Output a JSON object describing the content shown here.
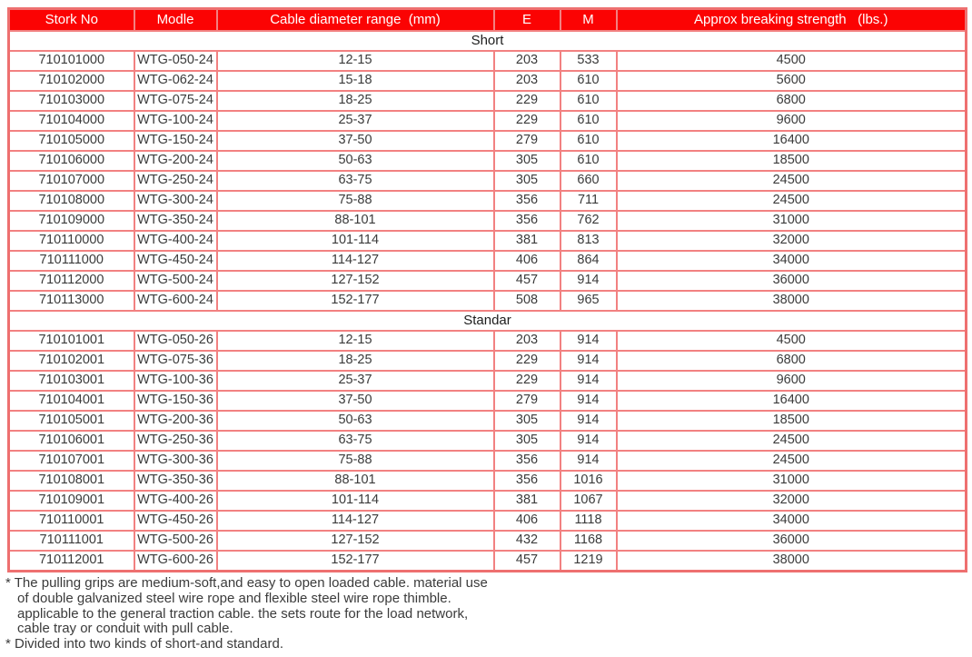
{
  "colors": {
    "header_bg": "#fb0303",
    "border": "#f28181",
    "border_outer": "#ee7070",
    "text": "#3b3b3b"
  },
  "table": {
    "columns": [
      "Stork No",
      "Modle",
      "Cable diameter range  (mm)",
      "E",
      "M",
      "Approx breaking strength   (lbs.)"
    ],
    "sections": [
      {
        "title": "Short",
        "rows": [
          [
            "710101000",
            "WTG-050-24",
            "12-15",
            "203",
            "533",
            "4500"
          ],
          [
            "710102000",
            "WTG-062-24",
            "15-18",
            "203",
            "610",
            "5600"
          ],
          [
            "710103000",
            "WTG-075-24",
            "18-25",
            "229",
            "610",
            "6800"
          ],
          [
            "710104000",
            "WTG-100-24",
            "25-37",
            "229",
            "610",
            "9600"
          ],
          [
            "710105000",
            "WTG-150-24",
            "37-50",
            "279",
            "610",
            "16400"
          ],
          [
            "710106000",
            "WTG-200-24",
            "50-63",
            "305",
            "610",
            "18500"
          ],
          [
            "710107000",
            "WTG-250-24",
            "63-75",
            "305",
            "660",
            "24500"
          ],
          [
            "710108000",
            "WTG-300-24",
            "75-88",
            "356",
            "711",
            "24500"
          ],
          [
            "710109000",
            "WTG-350-24",
            "88-101",
            "356",
            "762",
            "31000"
          ],
          [
            "710110000",
            "WTG-400-24",
            "101-114",
            "381",
            "813",
            "32000"
          ],
          [
            "710111000",
            "WTG-450-24",
            "114-127",
            "406",
            "864",
            "34000"
          ],
          [
            "710112000",
            "WTG-500-24",
            "127-152",
            "457",
            "914",
            "36000"
          ],
          [
            "710113000",
            "WTG-600-24",
            "152-177",
            "508",
            "965",
            "38000"
          ]
        ]
      },
      {
        "title": "Standar",
        "rows": [
          [
            "710101001",
            "WTG-050-26",
            "12-15",
            "203",
            "914",
            "4500"
          ],
          [
            "710102001",
            "WTG-075-36",
            "18-25",
            "229",
            "914",
            "6800"
          ],
          [
            "710103001",
            "WTG-100-36",
            "25-37",
            "229",
            "914",
            "9600"
          ],
          [
            "710104001",
            "WTG-150-36",
            "37-50",
            "279",
            "914",
            "16400"
          ],
          [
            "710105001",
            "WTG-200-36",
            "50-63",
            "305",
            "914",
            "18500"
          ],
          [
            "710106001",
            "WTG-250-36",
            "63-75",
            "305",
            "914",
            "24500"
          ],
          [
            "710107001",
            "WTG-300-36",
            "75-88",
            "356",
            "914",
            "24500"
          ],
          [
            "710108001",
            "WTG-350-36",
            "88-101",
            "356",
            "1016",
            "31000"
          ],
          [
            "710109001",
            "WTG-400-26",
            "101-114",
            "381",
            "1067",
            "32000"
          ],
          [
            "710110001",
            "WTG-450-26",
            "114-127",
            "406",
            "1118",
            "34000"
          ],
          [
            "710111001",
            "WTG-500-26",
            "127-152",
            "432",
            "1168",
            "36000"
          ],
          [
            "710112001",
            "WTG-600-26",
            "152-177",
            "457",
            "1219",
            "38000"
          ]
        ]
      }
    ]
  },
  "footnotes": [
    {
      "lines": [
        "* The pulling grips are medium-soft,and easy to open loaded cable. material use",
        "of double galvanized steel wire rope and flexible steel wire rope thimble.",
        "applicable to the general traction cable. the sets route for the load network,",
        "cable tray or conduit with pull cable."
      ]
    },
    {
      "lines": [
        "* Divided into two kinds of short-and standard."
      ]
    }
  ]
}
